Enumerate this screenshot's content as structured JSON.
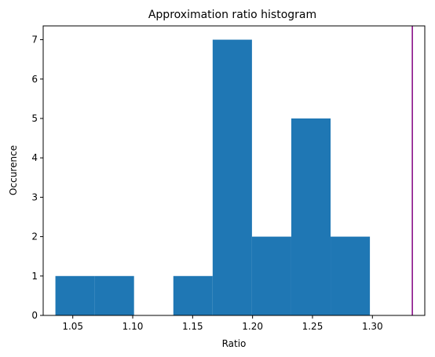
{
  "chart_data": {
    "type": "histogram",
    "title": "Approximation ratio histogram",
    "xlabel": "Ratio",
    "ylabel": "Occurence",
    "xlim": [
      1.0253,
      1.3437
    ],
    "ylim": [
      0,
      7.35
    ],
    "grid": false,
    "bar_color": "#1f77b4",
    "bins": [
      {
        "x0": 1.0355,
        "x1": 1.0683,
        "count": 1
      },
      {
        "x0": 1.0683,
        "x1": 1.1011,
        "count": 1
      },
      {
        "x0": 1.1011,
        "x1": 1.1339,
        "count": 0
      },
      {
        "x0": 1.1339,
        "x1": 1.1667,
        "count": 1
      },
      {
        "x0": 1.1667,
        "x1": 1.1995,
        "count": 7
      },
      {
        "x0": 1.1995,
        "x1": 1.2323,
        "count": 2
      },
      {
        "x0": 1.2323,
        "x1": 1.2651,
        "count": 5
      },
      {
        "x0": 1.2651,
        "x1": 1.2979,
        "count": 2
      }
    ],
    "xticks": [
      {
        "value": 1.05,
        "label": "1.05"
      },
      {
        "value": 1.1,
        "label": "1.10"
      },
      {
        "value": 1.15,
        "label": "1.15"
      },
      {
        "value": 1.2,
        "label": "1.20"
      },
      {
        "value": 1.25,
        "label": "1.25"
      },
      {
        "value": 1.3,
        "label": "1.30"
      }
    ],
    "yticks": [
      {
        "value": 0,
        "label": "0"
      },
      {
        "value": 1,
        "label": "1"
      },
      {
        "value": 2,
        "label": "2"
      },
      {
        "value": 3,
        "label": "3"
      },
      {
        "value": 4,
        "label": "4"
      },
      {
        "value": 5,
        "label": "5"
      },
      {
        "value": 6,
        "label": "6"
      },
      {
        "value": 7,
        "label": "7"
      }
    ],
    "vline": {
      "x": 1.3333,
      "color": "#800080"
    }
  }
}
